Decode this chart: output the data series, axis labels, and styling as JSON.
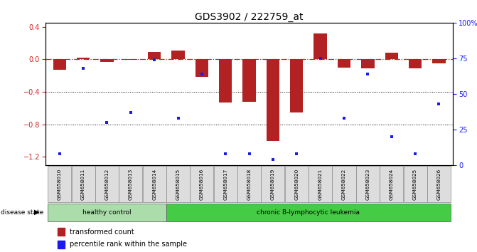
{
  "title": "GDS3902 / 222759_at",
  "samples": [
    "GSM658010",
    "GSM658011",
    "GSM658012",
    "GSM658013",
    "GSM658014",
    "GSM658015",
    "GSM658016",
    "GSM658017",
    "GSM658018",
    "GSM658019",
    "GSM658020",
    "GSM658021",
    "GSM658022",
    "GSM658023",
    "GSM658024",
    "GSM658025",
    "GSM658026"
  ],
  "bar_values": [
    -0.13,
    0.02,
    -0.03,
    -0.01,
    0.09,
    0.11,
    -0.22,
    -0.53,
    -0.52,
    -1.0,
    -0.65,
    0.32,
    -0.1,
    -0.11,
    0.08,
    -0.11,
    -0.05
  ],
  "dot_values": [
    8,
    68,
    30,
    37,
    74,
    33,
    64,
    8,
    8,
    4,
    8,
    75,
    33,
    64,
    20,
    8,
    43
  ],
  "bar_color": "#b22222",
  "dot_color": "#1a1aee",
  "dashed_line_color": "#cc2222",
  "ylim_left": [
    -1.3,
    0.45
  ],
  "ylim_right": [
    0,
    100
  ],
  "right_ticks": [
    0,
    25,
    50,
    75,
    100
  ],
  "right_tick_labels": [
    "0",
    "25",
    "50",
    "75",
    "100%"
  ],
  "left_ticks": [
    -1.2,
    -0.8,
    -0.4,
    0.0,
    0.4
  ],
  "dotted_lines": [
    -0.4,
    -0.8
  ],
  "group_labels": [
    "healthy control",
    "chronic B-lymphocytic leukemia"
  ],
  "group_colors": [
    "#99dd88",
    "#55cc44"
  ],
  "disease_state_label": "disease state",
  "legend_items": [
    "transformed count",
    "percentile rank within the sample"
  ],
  "plot_bg": "#ffffff",
  "title_fontsize": 10,
  "tick_fontsize": 7
}
